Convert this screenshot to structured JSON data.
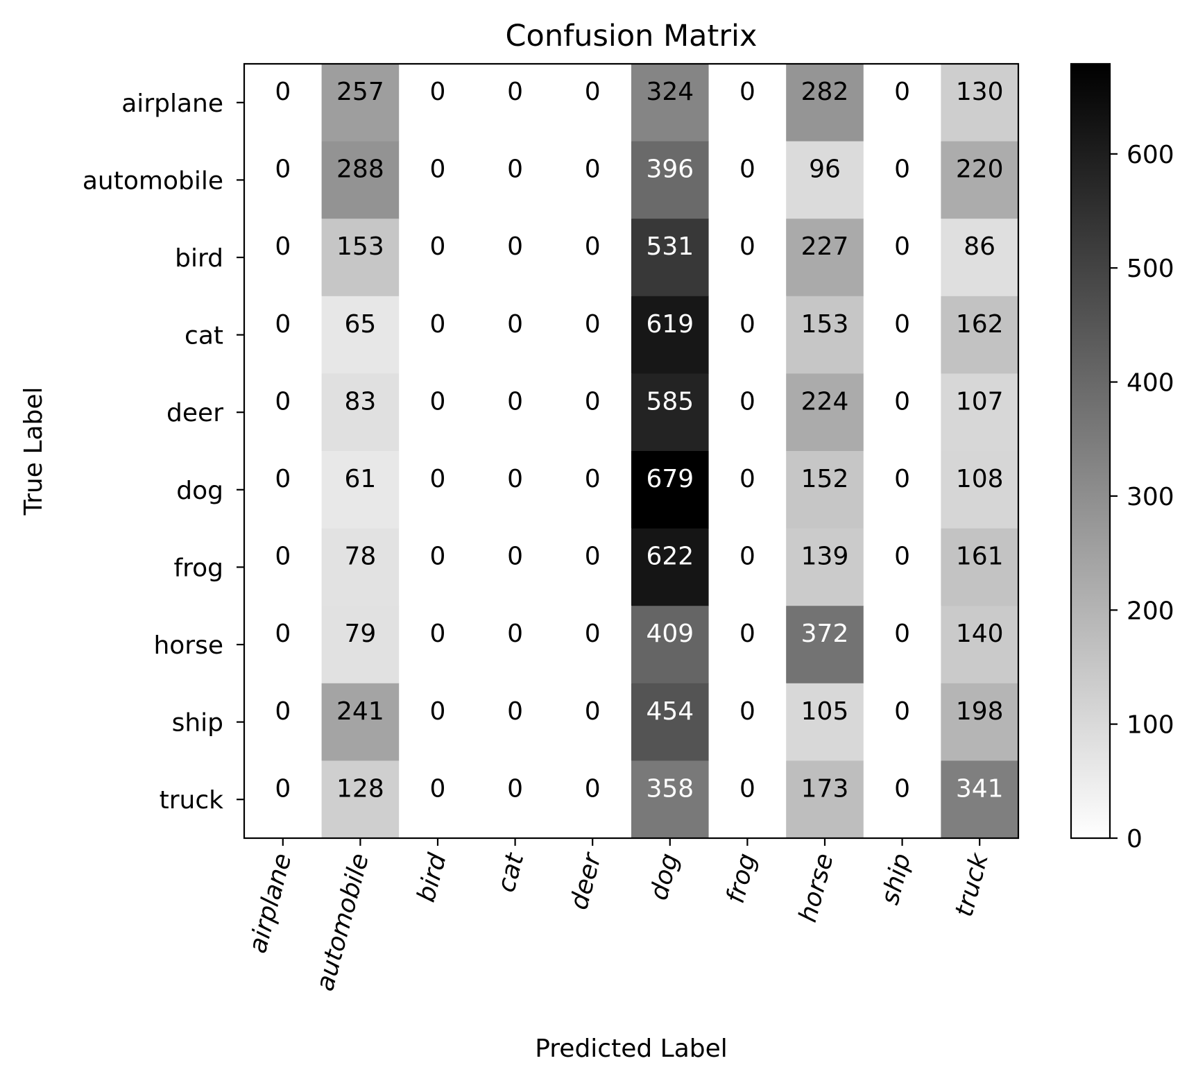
{
  "chart_data": {
    "type": "heatmap",
    "title": "Confusion Matrix",
    "xlabel": "Predicted Label",
    "ylabel": "True Label",
    "x_categories": [
      "airplane",
      "automobile",
      "bird",
      "cat",
      "deer",
      "dog",
      "frog",
      "horse",
      "ship",
      "truck"
    ],
    "y_categories": [
      "airplane",
      "automobile",
      "bird",
      "cat",
      "deer",
      "dog",
      "frog",
      "horse",
      "ship",
      "truck"
    ],
    "values": [
      [
        0,
        257,
        0,
        0,
        0,
        324,
        0,
        282,
        0,
        130
      ],
      [
        0,
        288,
        0,
        0,
        0,
        396,
        0,
        96,
        0,
        220
      ],
      [
        0,
        153,
        0,
        0,
        0,
        531,
        0,
        227,
        0,
        86
      ],
      [
        0,
        65,
        0,
        0,
        0,
        619,
        0,
        153,
        0,
        162
      ],
      [
        0,
        83,
        0,
        0,
        0,
        585,
        0,
        224,
        0,
        107
      ],
      [
        0,
        61,
        0,
        0,
        0,
        679,
        0,
        152,
        0,
        108
      ],
      [
        0,
        78,
        0,
        0,
        0,
        622,
        0,
        139,
        0,
        161
      ],
      [
        0,
        79,
        0,
        0,
        0,
        409,
        0,
        372,
        0,
        140
      ],
      [
        0,
        241,
        0,
        0,
        0,
        454,
        0,
        105,
        0,
        198
      ],
      [
        0,
        128,
        0,
        0,
        0,
        358,
        0,
        173,
        0,
        341
      ]
    ],
    "colorbar": {
      "min": 0,
      "max": 679,
      "ticks": [
        0,
        100,
        200,
        300,
        400,
        500,
        600
      ],
      "colormap": "greys",
      "low_color": "#ffffff",
      "high_color": "#000000"
    },
    "x_tick_rotation_deg": -75,
    "grid": false
  }
}
